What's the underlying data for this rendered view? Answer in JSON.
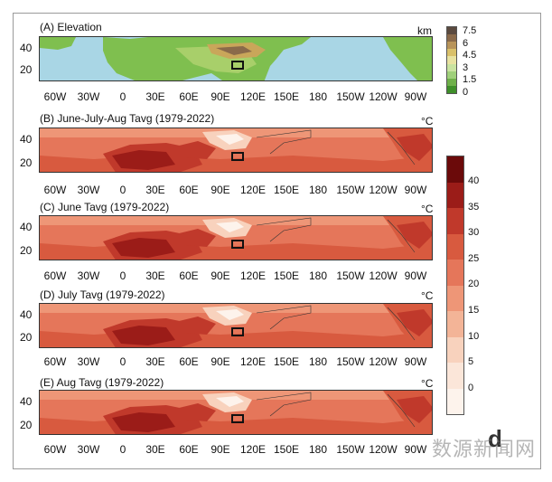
{
  "panels": [
    {
      "id": "A",
      "title": "(A) Elevation",
      "unit": "km"
    },
    {
      "id": "B",
      "title": "(B) June-July-Aug Tavg (1979-2022)",
      "unit": "°C"
    },
    {
      "id": "C",
      "title": "(C) June Tavg (1979-2022)",
      "unit": "°C"
    },
    {
      "id": "D",
      "title": "(D) July Tavg (1979-2022)",
      "unit": "°C"
    },
    {
      "id": "E",
      "title": "(E) Aug Tavg (1979-2022)",
      "unit": "°C"
    }
  ],
  "lat_labels": [
    "40",
    "20"
  ],
  "lon_labels": [
    "60W",
    "30W",
    "0",
    "30E",
    "60E",
    "90E",
    "120E",
    "150E",
    "180",
    "150W",
    "120W",
    "90W"
  ],
  "elevation_colorbar": {
    "ticks": [
      "7.5",
      "6",
      "4.5",
      "3",
      "1.5",
      "0"
    ],
    "colors": [
      "#5b4a3f",
      "#8a6a4a",
      "#b8945a",
      "#d9c06a",
      "#e8e2a0",
      "#c9e3a0",
      "#9fd07a",
      "#6fb04a",
      "#3f8f2a"
    ]
  },
  "temperature_colorbar": {
    "ticks": [
      "40",
      "35",
      "30",
      "25",
      "20",
      "15",
      "10",
      "5",
      "0"
    ],
    "colors": [
      "#6b0a0a",
      "#9b1c18",
      "#c0392b",
      "#d85a3f",
      "#e5765a",
      "#ee9677",
      "#f3b497",
      "#f8d2bd",
      "#fbe6d9",
      "#fdf3ec"
    ]
  },
  "colors": {
    "ocean": "#a9d6e5",
    "land_low": "#7fbf4f",
    "frame": "#9a9a9a"
  },
  "watermark_text": "数源新闻网",
  "corner_letter": "d"
}
